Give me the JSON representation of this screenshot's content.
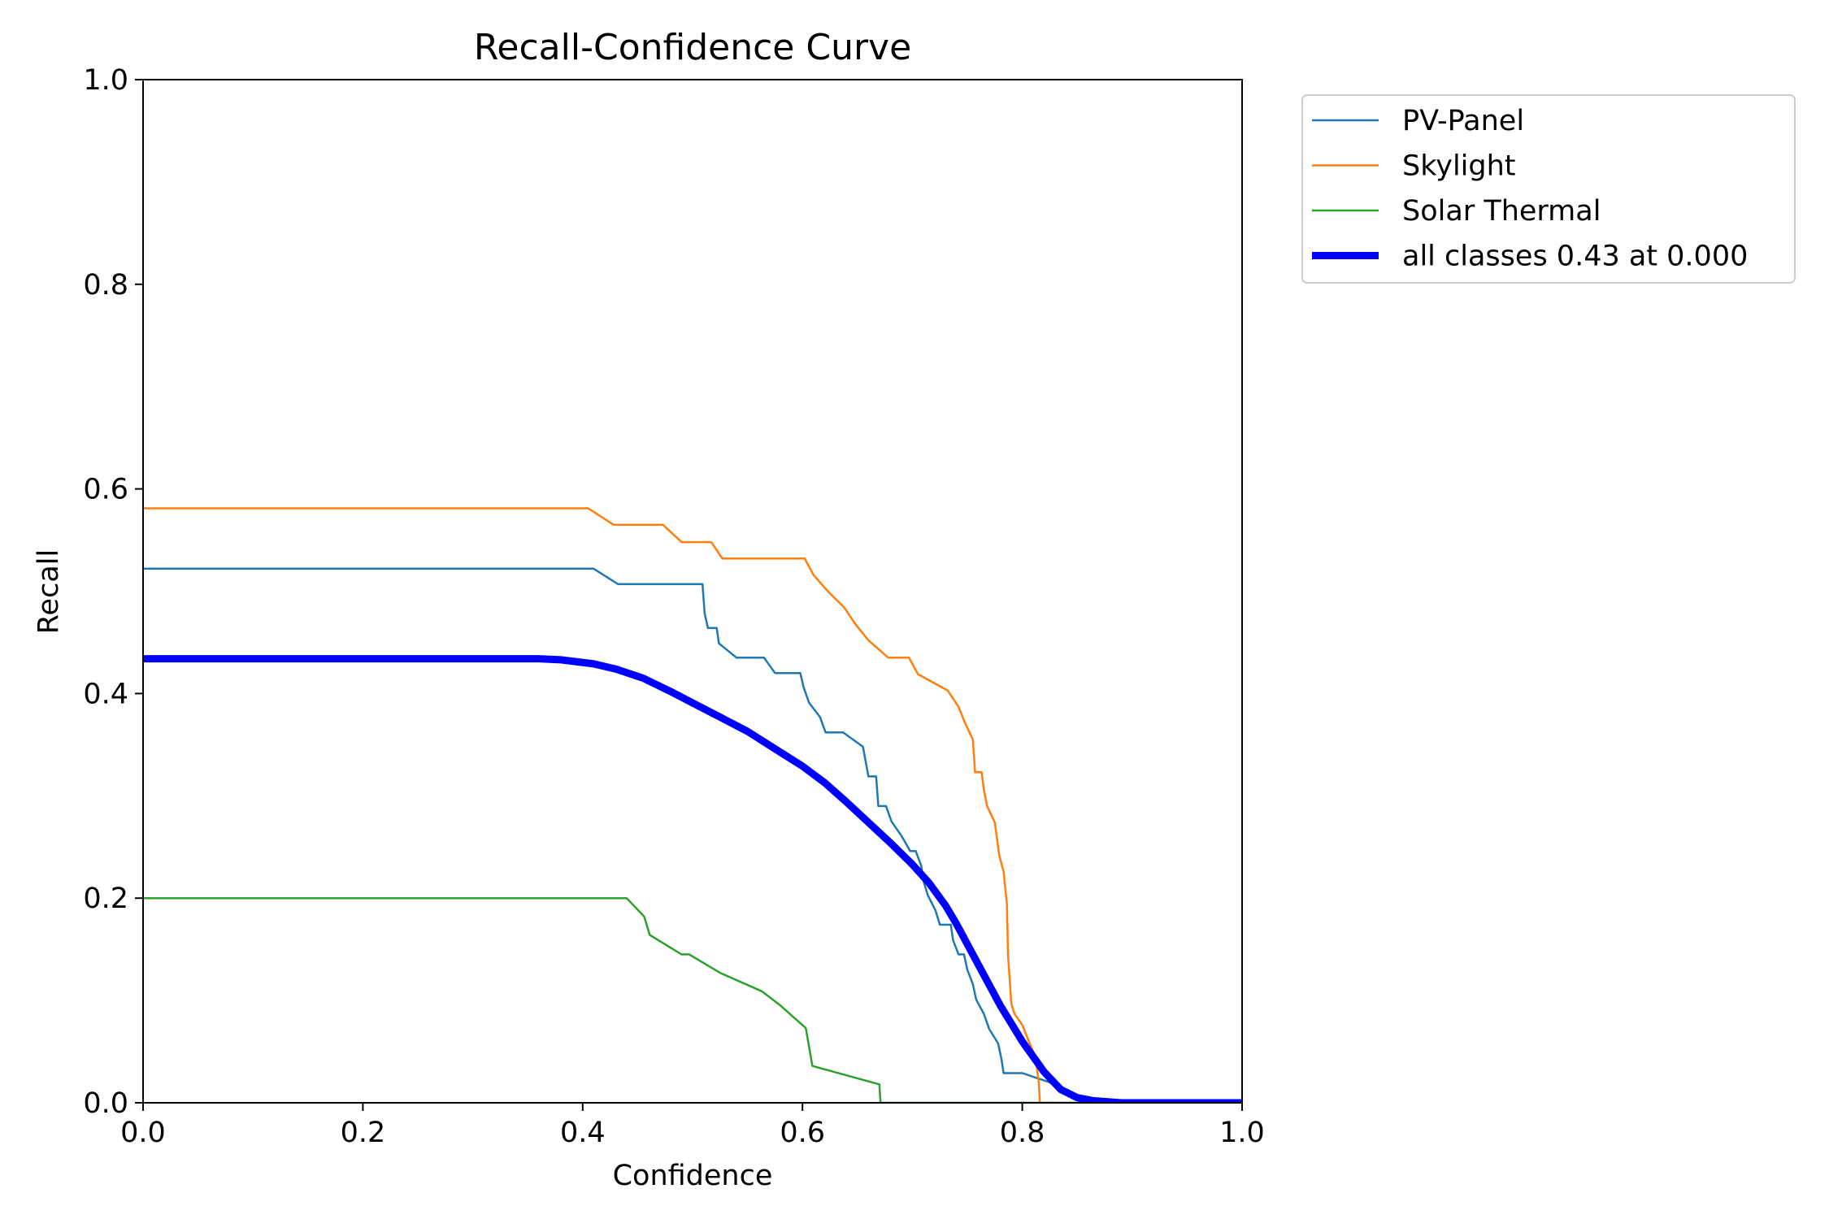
{
  "chart_data": {
    "type": "line",
    "title": "Recall-Confidence Curve",
    "xlabel": "Confidence",
    "ylabel": "Recall",
    "xlim": [
      0.0,
      1.0
    ],
    "ylim": [
      0.0,
      1.0
    ],
    "x_ticks": [
      "0.0",
      "0.2",
      "0.4",
      "0.6",
      "0.8",
      "1.0"
    ],
    "y_ticks": [
      "0.0",
      "0.2",
      "0.4",
      "0.6",
      "0.8",
      "1.0"
    ],
    "grid": false,
    "legend_position": "outside upper right",
    "series": [
      {
        "name": "PV-Panel",
        "color": "#1f77b4",
        "style": "thin",
        "points": [
          [
            0.0,
            0.522
          ],
          [
            0.41,
            0.522
          ],
          [
            0.432,
            0.507
          ],
          [
            0.509,
            0.507
          ],
          [
            0.511,
            0.478
          ],
          [
            0.514,
            0.464
          ],
          [
            0.522,
            0.464
          ],
          [
            0.524,
            0.449
          ],
          [
            0.54,
            0.435
          ],
          [
            0.565,
            0.435
          ],
          [
            0.575,
            0.42
          ],
          [
            0.598,
            0.42
          ],
          [
            0.601,
            0.406
          ],
          [
            0.606,
            0.391
          ],
          [
            0.616,
            0.377
          ],
          [
            0.621,
            0.362
          ],
          [
            0.637,
            0.362
          ],
          [
            0.655,
            0.348
          ],
          [
            0.66,
            0.319
          ],
          [
            0.667,
            0.319
          ],
          [
            0.669,
            0.29
          ],
          [
            0.676,
            0.29
          ],
          [
            0.681,
            0.275
          ],
          [
            0.69,
            0.261
          ],
          [
            0.698,
            0.246
          ],
          [
            0.703,
            0.246
          ],
          [
            0.708,
            0.232
          ],
          [
            0.71,
            0.217
          ],
          [
            0.714,
            0.203
          ],
          [
            0.721,
            0.188
          ],
          [
            0.725,
            0.174
          ],
          [
            0.735,
            0.174
          ],
          [
            0.737,
            0.159
          ],
          [
            0.742,
            0.145
          ],
          [
            0.747,
            0.145
          ],
          [
            0.75,
            0.13
          ],
          [
            0.755,
            0.116
          ],
          [
            0.758,
            0.101
          ],
          [
            0.765,
            0.087
          ],
          [
            0.77,
            0.072
          ],
          [
            0.778,
            0.058
          ],
          [
            0.781,
            0.043
          ],
          [
            0.783,
            0.029
          ],
          [
            0.8,
            0.029
          ],
          [
            0.825,
            0.02
          ],
          [
            0.845,
            0.005
          ],
          [
            0.86,
            0.001
          ],
          [
            1.0,
            0.0
          ]
        ]
      },
      {
        "name": "Skylight",
        "color": "#ff7f0e",
        "style": "thin",
        "points": [
          [
            0.0,
            0.581
          ],
          [
            0.405,
            0.581
          ],
          [
            0.428,
            0.565
          ],
          [
            0.473,
            0.565
          ],
          [
            0.49,
            0.548
          ],
          [
            0.517,
            0.548
          ],
          [
            0.527,
            0.532
          ],
          [
            0.602,
            0.532
          ],
          [
            0.61,
            0.516
          ],
          [
            0.623,
            0.5
          ],
          [
            0.638,
            0.484
          ],
          [
            0.648,
            0.468
          ],
          [
            0.66,
            0.452
          ],
          [
            0.678,
            0.435
          ],
          [
            0.697,
            0.435
          ],
          [
            0.705,
            0.419
          ],
          [
            0.732,
            0.403
          ],
          [
            0.742,
            0.387
          ],
          [
            0.748,
            0.371
          ],
          [
            0.755,
            0.355
          ],
          [
            0.757,
            0.323
          ],
          [
            0.763,
            0.323
          ],
          [
            0.765,
            0.306
          ],
          [
            0.768,
            0.29
          ],
          [
            0.775,
            0.274
          ],
          [
            0.779,
            0.242
          ],
          [
            0.783,
            0.226
          ],
          [
            0.786,
            0.194
          ],
          [
            0.787,
            0.145
          ],
          [
            0.79,
            0.097
          ],
          [
            0.793,
            0.087
          ],
          [
            0.8,
            0.076
          ],
          [
            0.806,
            0.06
          ],
          [
            0.812,
            0.045
          ],
          [
            0.815,
            0.02
          ],
          [
            0.816,
            0.0
          ],
          [
            1.0,
            0.0
          ]
        ]
      },
      {
        "name": "Solar Thermal",
        "color": "#2ca02c",
        "style": "thin",
        "points": [
          [
            0.0,
            0.2
          ],
          [
            0.44,
            0.2
          ],
          [
            0.456,
            0.182
          ],
          [
            0.461,
            0.164
          ],
          [
            0.49,
            0.145
          ],
          [
            0.497,
            0.145
          ],
          [
            0.525,
            0.127
          ],
          [
            0.563,
            0.109
          ],
          [
            0.58,
            0.095
          ],
          [
            0.603,
            0.073
          ],
          [
            0.609,
            0.036
          ],
          [
            0.67,
            0.018
          ],
          [
            0.671,
            0.0
          ],
          [
            1.0,
            0.0
          ]
        ]
      },
      {
        "name": "all classes 0.43 at 0.000",
        "color": "#0000ff",
        "style": "thick",
        "points": [
          [
            0.0,
            0.434
          ],
          [
            0.36,
            0.434
          ],
          [
            0.38,
            0.433
          ],
          [
            0.41,
            0.429
          ],
          [
            0.43,
            0.424
          ],
          [
            0.455,
            0.415
          ],
          [
            0.48,
            0.402
          ],
          [
            0.505,
            0.388
          ],
          [
            0.525,
            0.377
          ],
          [
            0.55,
            0.363
          ],
          [
            0.575,
            0.346
          ],
          [
            0.6,
            0.329
          ],
          [
            0.62,
            0.313
          ],
          [
            0.64,
            0.294
          ],
          [
            0.66,
            0.274
          ],
          [
            0.68,
            0.254
          ],
          [
            0.7,
            0.233
          ],
          [
            0.715,
            0.215
          ],
          [
            0.73,
            0.193
          ],
          [
            0.74,
            0.175
          ],
          [
            0.76,
            0.135
          ],
          [
            0.78,
            0.095
          ],
          [
            0.8,
            0.06
          ],
          [
            0.82,
            0.03
          ],
          [
            0.835,
            0.013
          ],
          [
            0.85,
            0.005
          ],
          [
            0.865,
            0.002
          ],
          [
            0.89,
            0.0
          ],
          [
            1.0,
            0.0
          ]
        ]
      }
    ]
  }
}
